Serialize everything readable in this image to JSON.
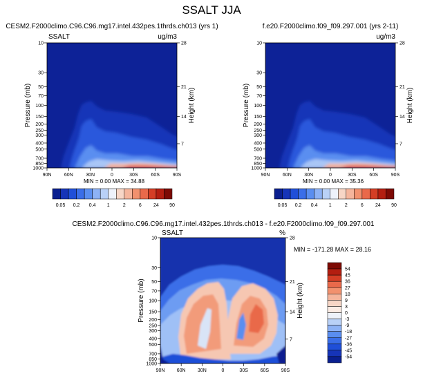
{
  "figure_title": "SSALT JJA",
  "chart_data": [
    {
      "type": "heatmap",
      "panel": "model-test",
      "title": "CESM2.F2000climo.C96.C96.mg17.intel.432pes.1thrds.ch013 (yrs 1)",
      "left_label": "SSALT",
      "right_label": "ug/m3",
      "ylabel": "Pressure (mb)",
      "ylabel_right": "Height (km)",
      "x_ticks": [
        "90N",
        "60N",
        "30N",
        "0",
        "30S",
        "60S",
        "90S"
      ],
      "y_ticks": [
        "10",
        "30",
        "50",
        "70",
        "100",
        "150",
        "200",
        "250",
        "300",
        "400",
        "500",
        "700",
        "850",
        "1000"
      ],
      "height_ticks": [
        "28",
        "21",
        "14",
        "7"
      ],
      "min_max_text": "MIN =  0.00  MAX =  34.88",
      "min": 0.0,
      "max": 34.88,
      "colorbar": {
        "orientation": "horizontal",
        "levels": [
          "0.05",
          "0.2",
          "0.4",
          "1",
          "2",
          "6",
          "24",
          "90"
        ],
        "colors": [
          "#0a1f8f",
          "#1634b8",
          "#1f4fd8",
          "#3a6ee8",
          "#5a8ef0",
          "#8db2f5",
          "#b9d1f7",
          "#eef2fa",
          "#f7d6c6",
          "#f5b59c",
          "#f2916e",
          "#e9694a",
          "#d43e25",
          "#b31e10",
          "#7d0a04"
        ]
      }
    },
    {
      "type": "heatmap",
      "panel": "model-control",
      "title": "f.e20.F2000climo.f09_f09.297.001 (yrs 2-11)",
      "left_label": "",
      "right_label": "ug/m3",
      "ylabel": "Pressure (mb)",
      "ylabel_right": "Height (km)",
      "x_ticks": [
        "90N",
        "60N",
        "30N",
        "0",
        "30S",
        "60S",
        "90S"
      ],
      "y_ticks": [
        "10",
        "30",
        "50",
        "70",
        "100",
        "150",
        "200",
        "250",
        "300",
        "400",
        "500",
        "700",
        "850",
        "1000"
      ],
      "height_ticks": [
        "28",
        "21",
        "14",
        "7"
      ],
      "min_max_text": "MIN =  0.00  MAX =  35.36",
      "min": 0.0,
      "max": 35.36,
      "colorbar": {
        "orientation": "horizontal",
        "levels": [
          "0.05",
          "0.2",
          "0.4",
          "1",
          "2",
          "6",
          "24",
          "90"
        ],
        "colors": [
          "#0a1f8f",
          "#1634b8",
          "#1f4fd8",
          "#3a6ee8",
          "#5a8ef0",
          "#8db2f5",
          "#b9d1f7",
          "#eef2fa",
          "#f7d6c6",
          "#f5b59c",
          "#f2916e",
          "#e9694a",
          "#d43e25",
          "#b31e10",
          "#7d0a04"
        ]
      }
    },
    {
      "type": "heatmap",
      "panel": "difference",
      "title": "CESM2.F2000climo.C96.C96.mg17.intel.432pes.1thrds.ch013 - f.e20.F2000climo.f09_f09.297.001",
      "left_label": "SSALT",
      "right_label": "%",
      "ylabel": "Pressure (mb)",
      "ylabel_right": "Height (km)",
      "x_ticks": [
        "90N",
        "60N",
        "30N",
        "0",
        "30S",
        "60S",
        "90S"
      ],
      "y_ticks": [
        "10",
        "30",
        "50",
        "70",
        "100",
        "150",
        "200",
        "250",
        "300",
        "400",
        "500",
        "700",
        "850",
        "1000"
      ],
      "height_ticks": [
        "28",
        "21",
        "14",
        "7"
      ],
      "min_max_text": "MIN = -171.28  MAX =  28.16",
      "min": -171.28,
      "max": 28.16,
      "colorbar": {
        "orientation": "vertical",
        "levels": [
          "54",
          "45",
          "36",
          "27",
          "18",
          "9",
          "3",
          "0",
          "-3",
          "-9",
          "-18",
          "-27",
          "-36",
          "-45",
          "-54"
        ],
        "colors": [
          "#7d0a04",
          "#b31e10",
          "#d43e25",
          "#e9694a",
          "#f2916e",
          "#f5b59c",
          "#f7d6c6",
          "#fbecE4",
          "#eef2fa",
          "#b9d1f7",
          "#8db2f5",
          "#5a8ef0",
          "#3a6ee8",
          "#1f4fd8",
          "#1634b8",
          "#0a1f8f"
        ]
      }
    }
  ]
}
